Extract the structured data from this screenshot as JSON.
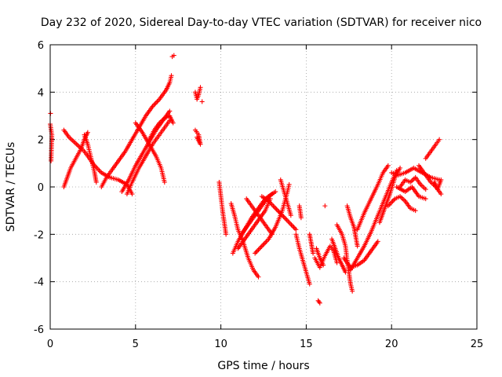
{
  "chart_data": {
    "type": "scatter",
    "title": "Day 232 of 2020, Sidereal Day-to-day VTEC variation (SDTVAR) for receiver nico",
    "xlabel": "GPS time / hours",
    "ylabel": "SDTVAR / TECUs",
    "xlim": [
      0,
      25
    ],
    "ylim": [
      -6,
      6
    ],
    "xticks": [
      0,
      5,
      10,
      15,
      20,
      25
    ],
    "yticks": [
      -6,
      -4,
      -2,
      0,
      2,
      4,
      6
    ],
    "grid": true,
    "marker": "+",
    "color": "#ff0000",
    "tracks": [
      [
        [
          0.0,
          2.65
        ],
        [
          0.1,
          2.2
        ],
        [
          0.05,
          1.1
        ],
        [
          0.02,
          3.1
        ]
      ],
      [
        [
          0.8,
          0.0
        ],
        [
          1.0,
          0.4
        ],
        [
          1.2,
          0.8
        ],
        [
          1.5,
          1.2
        ],
        [
          1.8,
          1.6
        ],
        [
          2.0,
          2.0
        ],
        [
          2.2,
          2.3
        ]
      ],
      [
        [
          0.8,
          2.4
        ],
        [
          1.1,
          2.1
        ],
        [
          1.4,
          1.9
        ],
        [
          1.7,
          1.7
        ],
        [
          2.0,
          1.5
        ],
        [
          2.3,
          1.2
        ],
        [
          2.6,
          0.9
        ],
        [
          3.0,
          0.6
        ],
        [
          3.5,
          0.4
        ],
        [
          4.0,
          0.3
        ],
        [
          4.5,
          0.1
        ],
        [
          4.8,
          -0.3
        ]
      ],
      [
        [
          2.0,
          2.2
        ],
        [
          2.2,
          1.8
        ],
        [
          2.4,
          1.2
        ],
        [
          2.6,
          0.6
        ],
        [
          2.7,
          0.2
        ]
      ],
      [
        [
          3.0,
          0.0
        ],
        [
          3.3,
          0.4
        ],
        [
          3.6,
          0.7
        ],
        [
          4.0,
          1.1
        ],
        [
          4.4,
          1.5
        ],
        [
          4.8,
          2.0
        ],
        [
          5.2,
          2.5
        ],
        [
          5.6,
          3.0
        ],
        [
          6.0,
          3.4
        ],
        [
          6.4,
          3.7
        ],
        [
          6.8,
          4.1
        ],
        [
          7.0,
          4.4
        ],
        [
          7.1,
          4.7
        ]
      ],
      [
        [
          4.2,
          -0.2
        ],
        [
          4.6,
          0.3
        ],
        [
          5.0,
          0.9
        ],
        [
          5.4,
          1.4
        ],
        [
          5.8,
          1.9
        ],
        [
          6.2,
          2.4
        ],
        [
          6.6,
          2.8
        ],
        [
          7.0,
          3.2
        ]
      ],
      [
        [
          4.5,
          -0.3
        ],
        [
          4.8,
          0.2
        ],
        [
          5.2,
          0.8
        ],
        [
          5.6,
          1.3
        ],
        [
          6.0,
          1.8
        ],
        [
          6.5,
          2.3
        ],
        [
          7.0,
          2.8
        ]
      ],
      [
        [
          5.0,
          2.7
        ],
        [
          5.4,
          2.3
        ],
        [
          5.8,
          1.8
        ],
        [
          6.2,
          1.3
        ],
        [
          6.5,
          0.8
        ],
        [
          6.7,
          0.2
        ]
      ],
      [
        [
          5.8,
          2.0
        ],
        [
          6.1,
          2.4
        ],
        [
          6.4,
          2.7
        ],
        [
          6.7,
          2.9
        ],
        [
          7.0,
          3.0
        ],
        [
          7.2,
          2.7
        ]
      ],
      [
        [
          7.15,
          5.5
        ],
        [
          7.25,
          5.55
        ]
      ],
      [
        [
          8.5,
          4.0
        ],
        [
          8.6,
          3.7
        ],
        [
          8.7,
          3.9
        ],
        [
          8.8,
          4.2
        ],
        [
          8.5,
          2.4
        ],
        [
          8.7,
          2.2
        ],
        [
          8.8,
          1.8
        ],
        [
          8.6,
          2.1
        ],
        [
          8.9,
          3.6
        ]
      ],
      [
        [
          9.9,
          0.2
        ],
        [
          10.0,
          -0.4
        ],
        [
          10.1,
          -1.0
        ],
        [
          10.2,
          -1.5
        ],
        [
          10.3,
          -2.0
        ]
      ],
      [
        [
          10.6,
          -0.7
        ],
        [
          10.8,
          -1.2
        ],
        [
          11.0,
          -1.8
        ],
        [
          11.3,
          -2.3
        ],
        [
          11.6,
          -3.0
        ],
        [
          11.9,
          -3.5
        ],
        [
          12.2,
          -3.8
        ]
      ],
      [
        [
          10.7,
          -2.8
        ],
        [
          11.0,
          -2.3
        ],
        [
          11.4,
          -1.8
        ],
        [
          11.8,
          -1.3
        ],
        [
          12.2,
          -0.9
        ],
        [
          12.6,
          -0.5
        ],
        [
          13.0,
          -0.3
        ]
      ],
      [
        [
          11.0,
          -2.6
        ],
        [
          11.4,
          -2.2
        ],
        [
          11.8,
          -1.8
        ],
        [
          12.2,
          -1.4
        ],
        [
          12.6,
          -1.0
        ],
        [
          12.9,
          -0.5
        ]
      ],
      [
        [
          11.2,
          -2.0
        ],
        [
          11.6,
          -1.6
        ],
        [
          12.0,
          -1.2
        ],
        [
          12.4,
          -0.8
        ],
        [
          12.8,
          -0.4
        ],
        [
          13.2,
          -0.2
        ]
      ],
      [
        [
          11.5,
          -0.5
        ],
        [
          11.8,
          -0.8
        ],
        [
          12.1,
          -1.1
        ],
        [
          12.4,
          -1.4
        ],
        [
          12.7,
          -1.7
        ],
        [
          13.0,
          -2.0
        ]
      ],
      [
        [
          12.4,
          -0.4
        ],
        [
          12.8,
          -0.6
        ],
        [
          13.2,
          -0.9
        ],
        [
          13.6,
          -1.2
        ],
        [
          14.0,
          -1.5
        ],
        [
          14.4,
          -1.8
        ]
      ],
      [
        [
          12.0,
          -2.8
        ],
        [
          12.4,
          -2.5
        ],
        [
          12.8,
          -2.2
        ],
        [
          13.2,
          -1.7
        ],
        [
          13.6,
          -1.0
        ],
        [
          13.9,
          -0.2
        ],
        [
          14.0,
          0.1
        ]
      ],
      [
        [
          13.5,
          0.3
        ],
        [
          13.7,
          -0.2
        ],
        [
          13.9,
          -0.7
        ],
        [
          14.1,
          -1.2
        ]
      ],
      [
        [
          14.4,
          -2.0
        ],
        [
          14.6,
          -2.6
        ],
        [
          14.8,
          -3.1
        ],
        [
          15.0,
          -3.6
        ],
        [
          15.2,
          -4.1
        ]
      ],
      [
        [
          15.2,
          -2.0
        ],
        [
          15.3,
          -2.4
        ],
        [
          15.4,
          -2.8
        ]
      ],
      [
        [
          14.6,
          -0.8
        ],
        [
          14.7,
          -1.3
        ]
      ],
      [
        [
          15.5,
          -3.0
        ],
        [
          15.8,
          -3.4
        ],
        [
          16.1,
          -2.9
        ],
        [
          16.4,
          -2.5
        ],
        [
          16.6,
          -2.7
        ],
        [
          16.8,
          -3.2
        ]
      ],
      [
        [
          15.6,
          -2.6
        ],
        [
          15.8,
          -3.0
        ],
        [
          16.0,
          -3.3
        ]
      ],
      [
        [
          15.7,
          -4.8
        ],
        [
          15.8,
          -4.9
        ]
      ],
      [
        [
          16.5,
          -2.2
        ],
        [
          16.7,
          -2.6
        ],
        [
          16.9,
          -3.0
        ],
        [
          17.1,
          -3.3
        ],
        [
          17.3,
          -3.6
        ]
      ],
      [
        [
          16.8,
          -1.6
        ],
        [
          17.1,
          -2.0
        ],
        [
          17.3,
          -2.5
        ],
        [
          17.4,
          -3.1
        ],
        [
          17.5,
          -3.6
        ],
        [
          17.6,
          -4.1
        ],
        [
          17.7,
          -4.4
        ]
      ],
      [
        [
          17.2,
          -3.0
        ],
        [
          17.6,
          -3.4
        ],
        [
          18.0,
          -3.3
        ],
        [
          18.4,
          -3.1
        ],
        [
          18.8,
          -2.7
        ],
        [
          19.2,
          -2.3
        ]
      ],
      [
        [
          17.4,
          -0.8
        ],
        [
          17.6,
          -1.3
        ],
        [
          17.8,
          -1.7
        ],
        [
          17.9,
          -2.1
        ],
        [
          18.0,
          -2.5
        ]
      ],
      [
        [
          17.6,
          -3.5
        ],
        [
          18.0,
          -3.0
        ],
        [
          18.4,
          -2.5
        ],
        [
          18.8,
          -1.9
        ],
        [
          19.2,
          -1.2
        ],
        [
          19.6,
          -0.5
        ],
        [
          20.0,
          0.2
        ],
        [
          20.3,
          0.7
        ]
      ],
      [
        [
          18.0,
          -1.8
        ],
        [
          18.4,
          -1.1
        ],
        [
          18.8,
          -0.5
        ],
        [
          19.2,
          0.1
        ],
        [
          19.5,
          0.6
        ],
        [
          19.8,
          0.9
        ]
      ],
      [
        [
          19.3,
          -1.5
        ],
        [
          19.6,
          -0.9
        ],
        [
          19.9,
          -0.3
        ],
        [
          20.2,
          0.4
        ],
        [
          20.5,
          0.8
        ]
      ],
      [
        [
          19.8,
          -0.8
        ],
        [
          20.2,
          -0.5
        ],
        [
          20.5,
          -0.4
        ],
        [
          20.8,
          -0.6
        ],
        [
          21.1,
          -0.9
        ],
        [
          21.4,
          -1.0
        ]
      ],
      [
        [
          20.3,
          0.0
        ],
        [
          20.8,
          -0.2
        ],
        [
          21.2,
          0.0
        ],
        [
          21.6,
          -0.4
        ],
        [
          22.0,
          -0.5
        ]
      ],
      [
        [
          20.0,
          0.6
        ],
        [
          20.4,
          0.5
        ],
        [
          20.8,
          0.6
        ],
        [
          21.3,
          0.8
        ],
        [
          21.8,
          0.6
        ],
        [
          22.3,
          0.4
        ],
        [
          22.8,
          0.3
        ]
      ],
      [
        [
          20.5,
          0.0
        ],
        [
          20.8,
          0.3
        ],
        [
          21.1,
          0.2
        ],
        [
          21.4,
          0.4
        ],
        [
          21.7,
          0.1
        ],
        [
          22.0,
          -0.1
        ]
      ],
      [
        [
          21.6,
          0.9
        ],
        [
          22.0,
          0.5
        ],
        [
          22.3,
          0.2
        ],
        [
          22.6,
          0.0
        ],
        [
          22.9,
          -0.3
        ]
      ],
      [
        [
          22.0,
          1.2
        ],
        [
          22.3,
          1.5
        ],
        [
          22.6,
          1.8
        ],
        [
          22.8,
          2.0
        ]
      ],
      [
        [
          22.5,
          0.2
        ],
        [
          22.7,
          -0.1
        ],
        [
          22.9,
          0.3
        ]
      ],
      [
        [
          16.1,
          -0.8
        ]
      ]
    ]
  }
}
